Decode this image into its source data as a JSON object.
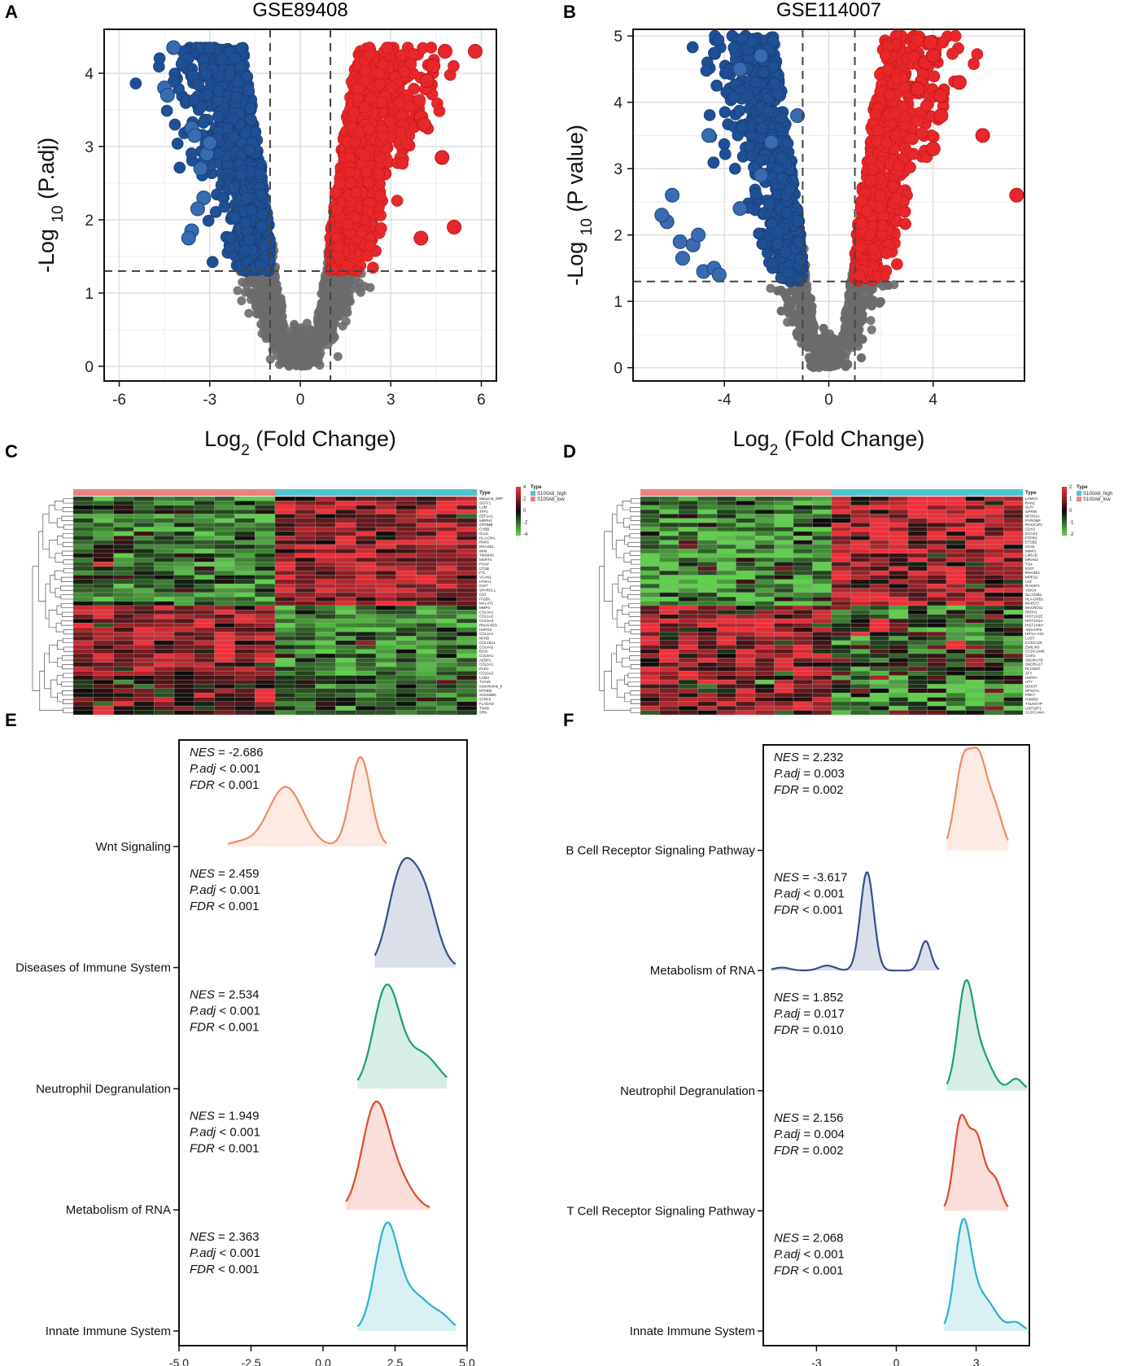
{
  "colors": {
    "up": "#e8272a",
    "down": "#1f4f94",
    "ns": "#6b6b6b",
    "hm_high": "#f0303a",
    "hm_low": "#5fd04c",
    "hm_mid": "#0b0b0b",
    "ann_high": "#4fc4cf",
    "ann_low": "#ee7f7f",
    "ridge": [
      "#f08a64",
      "#33508a",
      "#1b9e77",
      "#e0492f",
      "#2ab3c9"
    ]
  },
  "chart_data": [
    {
      "panel": "A",
      "type": "scatter",
      "title": "GSE89408",
      "xlabel": "Log2 (Fold Change)",
      "ylabel": "-Log 10 (P.adj)",
      "xlim": [
        -6.5,
        6.5
      ],
      "ylim": [
        -0.2,
        4.6
      ],
      "xticks": [
        -6,
        -3,
        0,
        3,
        6
      ],
      "xtick_labels": [
        "-6",
        "-3",
        "0",
        "3",
        "6"
      ],
      "yticks": [
        0,
        1,
        2,
        3,
        4
      ],
      "ytick_labels": [
        "0",
        "1",
        "2",
        "3",
        "4"
      ],
      "fc_cutoff": 1,
      "sig_cutoff": 1.3,
      "y_cap": 4.35,
      "x_spread": 3.1,
      "outliers_up": [
        [
          5.8,
          4.3
        ],
        [
          4.8,
          4.3
        ],
        [
          4.0,
          3.4
        ],
        [
          4.1,
          3.3
        ],
        [
          4.7,
          2.85
        ],
        [
          5.1,
          1.9
        ],
        [
          4.0,
          1.75
        ],
        [
          4.4,
          4.1
        ],
        [
          4.2,
          3.9
        ]
      ],
      "outliers_down": [
        [
          -4.5,
          3.8
        ],
        [
          -4.4,
          3.7
        ],
        [
          -3.6,
          3.25
        ],
        [
          -3.5,
          3.15
        ],
        [
          -3.1,
          2.9
        ],
        [
          -3.3,
          2.7
        ],
        [
          -3.2,
          2.3
        ],
        [
          -3.6,
          1.85
        ],
        [
          -3.7,
          1.75
        ],
        [
          -3.4,
          2.15
        ],
        [
          -4.2,
          4.35
        ],
        [
          -3.0,
          3.05
        ]
      ]
    },
    {
      "panel": "B",
      "type": "scatter",
      "title": "GSE114007",
      "xlabel": "Log2 (Fold Change)",
      "ylabel": "-Log 10 (P value)",
      "xlim": [
        -7.5,
        7.5
      ],
      "ylim": [
        -0.2,
        5.1
      ],
      "xticks": [
        -4,
        0,
        4
      ],
      "xtick_labels": [
        "-4",
        "0",
        "4"
      ],
      "yticks": [
        0,
        1,
        2,
        3,
        4,
        5
      ],
      "ytick_labels": [
        "0",
        "1",
        "2",
        "3",
        "4",
        "5"
      ],
      "fc_cutoff": 1,
      "sig_cutoff": 1.3,
      "y_cap": 5.0,
      "x_spread": 3.1,
      "outliers_up": [
        [
          7.2,
          2.6
        ],
        [
          5.9,
          3.5
        ],
        [
          5.0,
          4.3
        ],
        [
          4.3,
          4.1
        ],
        [
          4.3,
          3.8
        ],
        [
          3.9,
          4.9
        ],
        [
          3.7,
          4.6
        ],
        [
          4.0,
          4.7
        ],
        [
          3.4,
          4.2
        ],
        [
          4.0,
          3.3
        ]
      ],
      "outliers_down": [
        [
          -6.2,
          2.2
        ],
        [
          -6.4,
          2.3
        ],
        [
          -6.0,
          2.6
        ],
        [
          -5.7,
          1.9
        ],
        [
          -5.6,
          1.65
        ],
        [
          -5.2,
          1.85
        ],
        [
          -5.0,
          2.0
        ],
        [
          -4.8,
          1.45
        ],
        [
          -4.4,
          1.5
        ],
        [
          -4.2,
          1.4
        ],
        [
          -4.6,
          3.5
        ],
        [
          -3.4,
          4.5
        ],
        [
          -2.6,
          4.7
        ],
        [
          -3.4,
          2.4
        ],
        [
          -2.2,
          3.4
        ],
        [
          -2.6,
          2.9
        ],
        [
          -1.2,
          3.8
        ]
      ]
    },
    {
      "panel": "C",
      "type": "heatmap",
      "n_cols": 20,
      "n_low": 10,
      "legend_title": "Type",
      "scale_title": "Type",
      "scale_ticks": [
        "4",
        "2",
        "0",
        "-2",
        "-4"
      ],
      "annotation_legend": [
        "S100A8_high",
        "S100A8_low"
      ],
      "genes": [
        "Metazoa_SRP",
        "SCFF1",
        "LUM",
        "TFF1",
        "EEF1A1",
        "MRPH1",
        "GPNMB",
        "CYBB",
        "GLUL",
        "HLA-DRA",
        "RNF6",
        "RNASE1",
        "WIM",
        "TMSB4X",
        "MSRT4",
        "PSAP",
        "CTSB",
        "FTL",
        "VCAN1",
        "HTRA1",
        "IGST",
        "SPARCL1",
        "CST",
        "ITGB6",
        "MALAT1",
        "MMP3",
        "COL3A1",
        "COL1A2",
        "COL5A3",
        "RNA5-8SS",
        "HSPG2",
        "COL4A1",
        "NFKB",
        "COL15A1",
        "COL4A2",
        "BGN",
        "COL6A1",
        "AEBP1",
        "COL6A1",
        "PLEC",
        "COL6A2",
        "LAMA",
        "TVAS5",
        "cytochrome_b",
        "MTND5",
        "SCD1BB0",
        "STRF6",
        "FLADAD",
        "TNXB",
        "SRN"
      ],
      "clusters": [
        {
          "rows": [
            0,
            24
          ],
          "bias": [
            -1.2,
            1.5
          ]
        },
        {
          "rows": [
            25,
            40
          ],
          "bias": [
            1.4,
            -1.6
          ]
        },
        {
          "rows": [
            41,
            49
          ],
          "bias": [
            0.4,
            -1.0
          ]
        }
      ],
      "hot_cells": [
        [
          15,
          1
        ],
        [
          3,
          12
        ],
        [
          6,
          13
        ],
        [
          1,
          13
        ],
        [
          8,
          14
        ],
        [
          10,
          15
        ],
        [
          17,
          16
        ],
        [
          19,
          17
        ],
        [
          0,
          21
        ],
        [
          5,
          22
        ],
        [
          26,
          7
        ],
        [
          27,
          8
        ],
        [
          28,
          8
        ],
        [
          31,
          7
        ],
        [
          32,
          7
        ],
        [
          33,
          7
        ],
        [
          34,
          7
        ],
        [
          35,
          7
        ],
        [
          36,
          7
        ],
        [
          37,
          7
        ],
        [
          29,
          6
        ],
        [
          30,
          3
        ],
        [
          38,
          4
        ],
        [
          39,
          3
        ],
        [
          44,
          9
        ],
        [
          45,
          9
        ],
        [
          46,
          9
        ],
        [
          47,
          2
        ],
        [
          48,
          1
        ],
        [
          49,
          1
        ]
      ]
    },
    {
      "panel": "D",
      "type": "heatmap",
      "n_cols": 20,
      "n_low": 10,
      "legend_title": "Type",
      "scale_title": "Type",
      "scale_ticks": [
        "2",
        "1",
        "0",
        "-1",
        "-2"
      ],
      "annotation_legend": [
        "S100A8_high",
        "S100A8_low"
      ],
      "genes": [
        "LAMA3",
        "RAN1",
        "SLPI",
        "GPRIN",
        "NFSD2A",
        "PYROBP",
        "ROCK1P1",
        "CDX3",
        "ECCK2",
        "PTPRC",
        "ETSB2",
        "CD44",
        "MMP3",
        "LMS1B",
        "MRAN3",
        "TG4",
        "IGST",
        "RNASE1",
        "MPEG1",
        "LYZ",
        "RASSF2",
        "VSIG4",
        "SLCO2B1",
        "HLA-DRB1",
        "MARCO",
        "MACRO11",
        "RPPH1",
        "HIST1H1E",
        "HIST1H1A",
        "HIST1H4H",
        "ANXA2P2",
        "HIF1A-AS2",
        "LUST",
        "CCDC129",
        "EMILIN3",
        "CCDC144B",
        "CGR1",
        "SNORA7B",
        "SNORA27",
        "RLCDM7",
        "ZFY",
        "USP9Y",
        "UTY",
        "DDX3Y",
        "RPS4Y1",
        "PRKY",
        "KDM5D",
        "TXLNGYP",
        "USP32P1",
        "CCDC144A"
      ],
      "clusters": [
        {
          "rows": [
            0,
            24
          ],
          "bias": [
            -1.1,
            1.2
          ]
        },
        {
          "rows": [
            25,
            39
          ],
          "bias": [
            1.0,
            -0.5
          ]
        },
        {
          "rows": [
            40,
            49
          ],
          "bias": [
            0.8,
            -0.9
          ]
        }
      ],
      "hot_cells": [
        [
          0,
          16
        ],
        [
          1,
          16
        ],
        [
          0,
          15
        ],
        [
          28,
          12
        ],
        [
          29,
          12
        ],
        [
          30,
          12
        ],
        [
          31,
          11
        ],
        [
          33,
          16
        ],
        [
          34,
          16
        ],
        [
          42,
          3
        ],
        [
          43,
          7
        ],
        [
          44,
          7
        ]
      ]
    },
    {
      "panel": "E",
      "type": "ridgeline",
      "xlim": [
        -5.0,
        5.0
      ],
      "xticks": [
        -5.0,
        -2.5,
        0.0,
        2.5,
        5.0
      ],
      "xtick_labels": [
        "-5.0",
        "-2.5",
        "0.0",
        "2.5",
        "5.0"
      ],
      "series": [
        {
          "name": "Wnt Signaling",
          "nes": "-2.686",
          "padj_op": "<",
          "padj": "0.001",
          "fdr_op": "<",
          "fdr": "0.001",
          "peaks": [
            [
              1.3,
              0.9,
              0.35
            ],
            [
              -1.3,
              0.6,
              0.6
            ],
            [
              -2.9,
              0.04,
              0.4
            ]
          ],
          "range": [
            -3.3,
            2.2
          ]
        },
        {
          "name": "Diseases of Immune System",
          "nes": "2.459",
          "padj_op": "<",
          "padj": "0.001",
          "fdr_op": "<",
          "fdr": "0.001",
          "peaks": [
            [
              2.7,
              0.9,
              0.45
            ],
            [
              3.5,
              0.7,
              0.45
            ]
          ],
          "range": [
            1.8,
            4.6
          ]
        },
        {
          "name": "Neutrophil Degranulation",
          "nes": "2.534",
          "padj_op": "<",
          "padj": "0.001",
          "fdr_op": "<",
          "fdr": "0.001",
          "peaks": [
            [
              2.2,
              1.0,
              0.45
            ],
            [
              3.4,
              0.35,
              0.6
            ]
          ],
          "range": [
            1.2,
            4.3
          ]
        },
        {
          "name": "Metabolism of RNA",
          "nes": "1.949",
          "padj_op": "<",
          "padj": "0.001",
          "fdr_op": "<",
          "fdr": "0.001",
          "peaks": [
            [
              1.8,
              1.0,
              0.45
            ],
            [
              2.6,
              0.3,
              0.5
            ]
          ],
          "range": [
            0.8,
            3.7
          ]
        },
        {
          "name": "Innate Immune System",
          "nes": "2.363",
          "padj_op": "<",
          "padj": "0.001",
          "fdr_op": "<",
          "fdr": "0.001",
          "peaks": [
            [
              2.2,
              1.0,
              0.4
            ],
            [
              3.2,
              0.35,
              0.6
            ],
            [
              4.2,
              0.08,
              0.3
            ]
          ],
          "range": [
            1.2,
            4.6
          ]
        }
      ]
    },
    {
      "panel": "F",
      "type": "ridgeline",
      "xlim": [
        -5.0,
        5.0
      ],
      "xticks": [
        -3,
        0,
        3
      ],
      "xtick_labels": [
        "-3",
        "0",
        "3"
      ],
      "series": [
        {
          "name": "B Cell Receptor Signaling Pathway",
          "nes": "2.232",
          "padj_op": "=",
          "padj": "0.003",
          "fdr_op": "=",
          "fdr": "0.002",
          "peaks": [
            [
              2.5,
              0.85,
              0.3
            ],
            [
              3.1,
              0.85,
              0.3
            ],
            [
              3.7,
              0.4,
              0.3
            ]
          ],
          "range": [
            1.9,
            4.2
          ]
        },
        {
          "name": "Metabolism of RNA",
          "nes": "-3.617",
          "padj_op": "<",
          "padj": "0.001",
          "fdr_op": "<",
          "fdr": "0.001",
          "peaks": [
            [
              -1.1,
              1.0,
              0.25
            ],
            [
              1.1,
              0.3,
              0.2
            ],
            [
              -2.6,
              0.05,
              0.3
            ],
            [
              -4.3,
              0.03,
              0.3
            ]
          ],
          "range": [
            -4.7,
            1.6
          ]
        },
        {
          "name": "Neutrophil Degranulation",
          "nes": "1.852",
          "padj_op": "=",
          "padj": "0.017",
          "fdr_op": "=",
          "fdr": "0.010",
          "peaks": [
            [
              2.6,
              1.0,
              0.3
            ],
            [
              3.2,
              0.35,
              0.4
            ],
            [
              4.5,
              0.12,
              0.25
            ]
          ],
          "range": [
            1.9,
            4.9
          ]
        },
        {
          "name": "T Cell Receptor Signaling Pathway",
          "nes": "2.156",
          "padj_op": "=",
          "padj": "0.004",
          "fdr_op": "=",
          "fdr": "0.002",
          "peaks": [
            [
              2.4,
              0.85,
              0.25
            ],
            [
              3.0,
              0.75,
              0.3
            ],
            [
              3.7,
              0.3,
              0.25
            ]
          ],
          "range": [
            1.8,
            4.2
          ]
        },
        {
          "name": "Innate Immune System",
          "nes": "2.068",
          "padj_op": "<",
          "padj": "0.001",
          "fdr_op": "<",
          "fdr": "0.001",
          "peaks": [
            [
              2.5,
              1.0,
              0.3
            ],
            [
              3.2,
              0.35,
              0.5
            ],
            [
              4.5,
              0.08,
              0.25
            ]
          ],
          "range": [
            1.8,
            4.9
          ]
        }
      ]
    }
  ]
}
